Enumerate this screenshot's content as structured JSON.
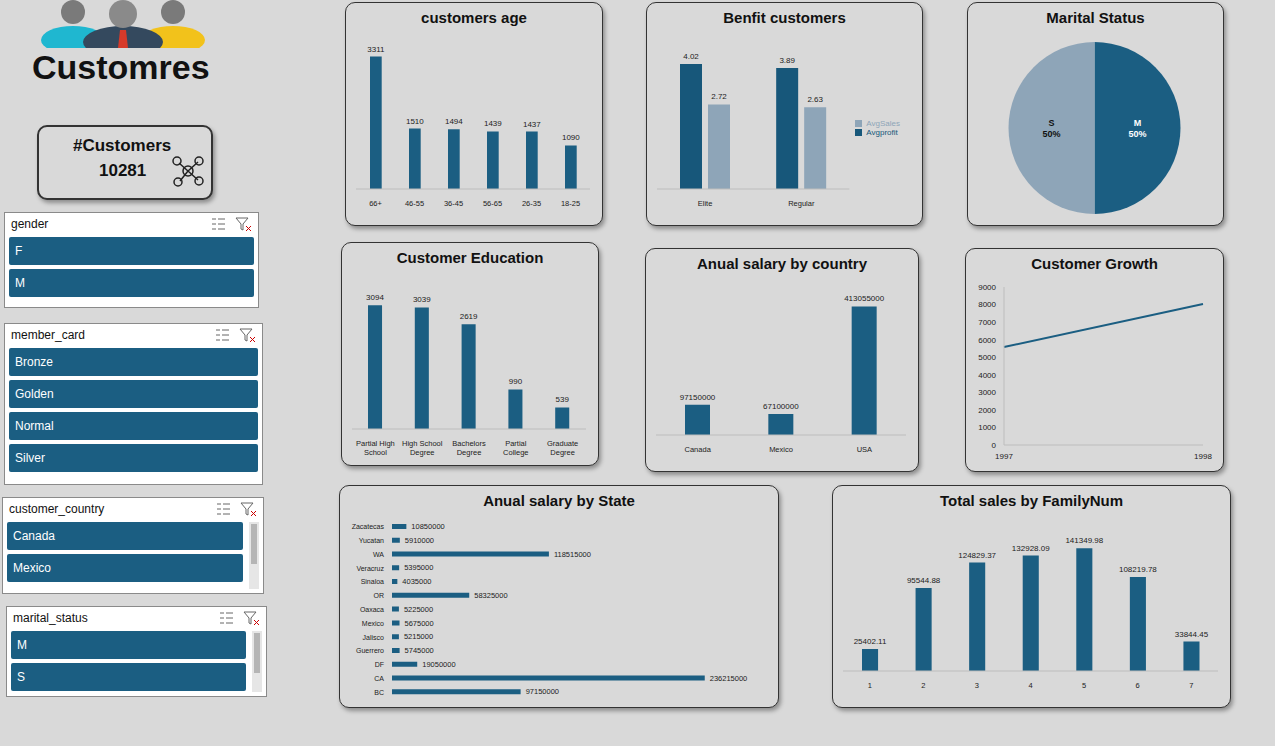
{
  "header": {
    "title": "Customres"
  },
  "kpi": {
    "label": "#Customers",
    "value": 10281
  },
  "slicers": [
    {
      "title": "gender",
      "items": [
        "F",
        "M"
      ]
    },
    {
      "title": "member_card",
      "items": [
        "Bronze",
        "Golden",
        "Normal",
        "Silver"
      ]
    },
    {
      "title": "customer_country",
      "items": [
        "Canada",
        "Mexico"
      ]
    },
    {
      "title": "marital_status",
      "items": [
        "M",
        "S"
      ]
    }
  ],
  "chart_data": [
    {
      "type": "bar",
      "title": "customers age",
      "categories": [
        "66+",
        "46-55",
        "36-45",
        "56-65",
        "26-35",
        "18-25"
      ],
      "values": [
        3311,
        1510,
        1494,
        1439,
        1437,
        1090
      ],
      "color": "#1b5e82",
      "ylim": [
        0,
        3500
      ],
      "data_labels": true,
      "tick_labels": "x",
      "grid": false
    },
    {
      "type": "bar",
      "title": "Benfit customers",
      "categories": [
        "Elite",
        "Regular"
      ],
      "series": [
        {
          "name": "Avgprofit",
          "color": "#17577a",
          "values": [
            4.02,
            3.89
          ]
        },
        {
          "name": "AvgSales",
          "color": "#8ea5b8",
          "values": [
            2.72,
            2.63
          ]
        }
      ],
      "ylim": [
        0,
        4.5
      ],
      "data_labels": true,
      "tick_labels": "x",
      "legend": "right",
      "grid": false
    },
    {
      "type": "pie",
      "title": "Marital Status",
      "categories": [
        "M",
        "S"
      ],
      "values": [
        50,
        50
      ],
      "value_labels": [
        "50%",
        "50%"
      ],
      "colors": [
        "#1b5e82",
        "#8ea5b8"
      ],
      "data_labels": true
    },
    {
      "type": "bar",
      "title": "Customer Education",
      "categories": [
        "Partial High School",
        "High School Degree",
        "Bachelors Degree",
        "Partial College",
        "Graduate Degree"
      ],
      "values": [
        3094,
        3039,
        2619,
        990,
        539
      ],
      "color": "#1b5e82",
      "ylim": [
        0,
        3500
      ],
      "data_labels": true,
      "tick_labels": "x",
      "grid": false
    },
    {
      "type": "bar",
      "title": "Anual salary by country",
      "categories": [
        "Canada",
        "Mexico",
        "USA"
      ],
      "values": [
        97150000,
        67100000,
        413055000
      ],
      "color": "#1b5e82",
      "ylim": [
        0,
        450000000
      ],
      "data_labels": true,
      "tick_labels": "x",
      "grid": false
    },
    {
      "type": "line",
      "title": "Customer Growth",
      "categories": [
        "1997",
        "1998"
      ],
      "values": [
        5580,
        8030
      ],
      "color": "#1b5e82",
      "ylim": [
        0,
        9000
      ],
      "yticks": [
        0,
        1000,
        2000,
        3000,
        4000,
        5000,
        6000,
        7000,
        8000,
        9000
      ],
      "grid": false
    },
    {
      "type": "bar",
      "title": "Anual salary by State",
      "orientation": "horizontal",
      "categories": [
        "Zacatecas",
        "Yucatan",
        "WA",
        "Veracruz",
        "Sinaloa",
        "OR",
        "Oaxaca",
        "Mexico",
        "Jalisco",
        "Guerrero",
        "DF",
        "CA",
        "BC"
      ],
      "values": [
        10850000,
        5910000,
        118515000,
        5395000,
        4035000,
        58325000,
        5225000,
        5675000,
        5215000,
        5745000,
        19050000,
        236215000,
        97150000
      ],
      "color": "#1b5e82",
      "xlim": [
        0,
        250000000
      ],
      "data_labels": true,
      "tick_labels": "y",
      "grid": false
    },
    {
      "type": "bar",
      "title": "Total sales by FamilyNum",
      "categories": [
        "1",
        "2",
        "3",
        "4",
        "5",
        "6",
        "7"
      ],
      "values": [
        25402.11,
        95544.88,
        124829.37,
        132928.09,
        141349.98,
        108219.78,
        33844.45
      ],
      "color": "#1b5e82",
      "ylim": [
        0,
        160000
      ],
      "data_labels": true,
      "tick_labels": "x",
      "grid": false
    }
  ]
}
